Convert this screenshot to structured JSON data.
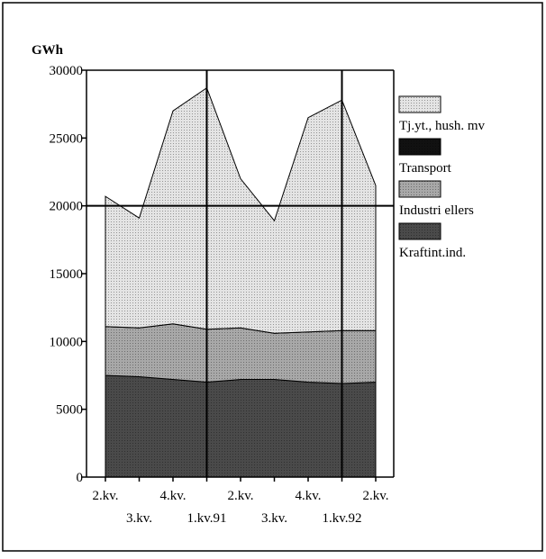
{
  "chart_data": {
    "type": "stacked_area",
    "y_label": "GWh",
    "categories": [
      "2.kv.",
      "3.kv.",
      "4.kv.",
      "1.kv.91",
      "2.kv.",
      "3.kv.",
      "4.kv.",
      "1.kv.92",
      "2.kv."
    ],
    "series": [
      {
        "name": "Tj.yt., hush. mv",
        "color": "#e4e4e4",
        "values": [
          9600,
          8100,
          15700,
          17800,
          11000,
          8300,
          15800,
          17000,
          10700
        ]
      },
      {
        "name": "Transport",
        "color": "#111111",
        "values": [
          0,
          0,
          0,
          0,
          0,
          0,
          0,
          0,
          0
        ]
      },
      {
        "name": "Industri ellers",
        "color": "#a8a8a8",
        "values": [
          3600,
          3600,
          4100,
          3900,
          3800,
          3400,
          3700,
          3900,
          3800
        ]
      },
      {
        "name": "Kraftint.ind.",
        "color": "#4a4a4a",
        "values": [
          7500,
          7400,
          7200,
          7000,
          7200,
          7200,
          7000,
          6900,
          7000
        ]
      }
    ],
    "reference_line": 20000,
    "ylim": [
      0,
      30000
    ],
    "yticks": [
      0,
      5000,
      10000,
      15000,
      20000,
      25000,
      30000
    ]
  }
}
